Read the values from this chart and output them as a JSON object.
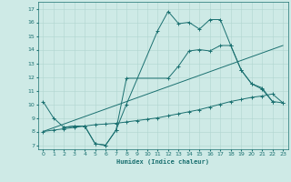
{
  "xlabel": "Humidex (Indice chaleur)",
  "bg_color": "#ceeae6",
  "grid_color": "#b0d5d0",
  "line_color": "#1a7070",
  "xlim": [
    -0.5,
    23.5
  ],
  "ylim": [
    6.7,
    17.5
  ],
  "yticks": [
    7,
    8,
    9,
    10,
    11,
    12,
    13,
    14,
    15,
    16,
    17
  ],
  "xticks": [
    0,
    1,
    2,
    3,
    4,
    5,
    6,
    7,
    8,
    9,
    10,
    11,
    12,
    13,
    14,
    15,
    16,
    17,
    18,
    19,
    20,
    21,
    22,
    23
  ],
  "line1_x": [
    0,
    1,
    2,
    3,
    4,
    5,
    6,
    7,
    8,
    11,
    12,
    13,
    14,
    15,
    16,
    17,
    18,
    19,
    20,
    21,
    22,
    23
  ],
  "line1_y": [
    10.2,
    9.0,
    8.3,
    8.4,
    8.4,
    7.1,
    7.0,
    8.1,
    10.0,
    15.4,
    16.8,
    15.9,
    16.0,
    15.5,
    16.2,
    16.2,
    14.3,
    12.5,
    11.5,
    11.1,
    10.2,
    10.1
  ],
  "line2_x": [
    2,
    3,
    4,
    5,
    6,
    7,
    8,
    12,
    13,
    14,
    15,
    16,
    17,
    18,
    19,
    20,
    21,
    22
  ],
  "line2_y": [
    8.3,
    8.4,
    8.4,
    7.1,
    7.0,
    8.1,
    11.9,
    11.9,
    12.8,
    13.9,
    14.0,
    13.9,
    14.3,
    14.3,
    12.5,
    11.5,
    11.2,
    10.2
  ],
  "line3_x": [
    0,
    1,
    2,
    3,
    4,
    5,
    6,
    7,
    8,
    9,
    10,
    11,
    12,
    13,
    14,
    15,
    16,
    17,
    18,
    19,
    20,
    21,
    22,
    23
  ],
  "line3_y": [
    8.0,
    8.1,
    8.2,
    8.3,
    8.4,
    8.5,
    8.55,
    8.6,
    8.7,
    8.8,
    8.9,
    9.0,
    9.15,
    9.3,
    9.45,
    9.6,
    9.8,
    10.0,
    10.2,
    10.35,
    10.5,
    10.6,
    10.75,
    10.1
  ],
  "line4_x": [
    0,
    23
  ],
  "line4_y": [
    8.0,
    14.3
  ]
}
